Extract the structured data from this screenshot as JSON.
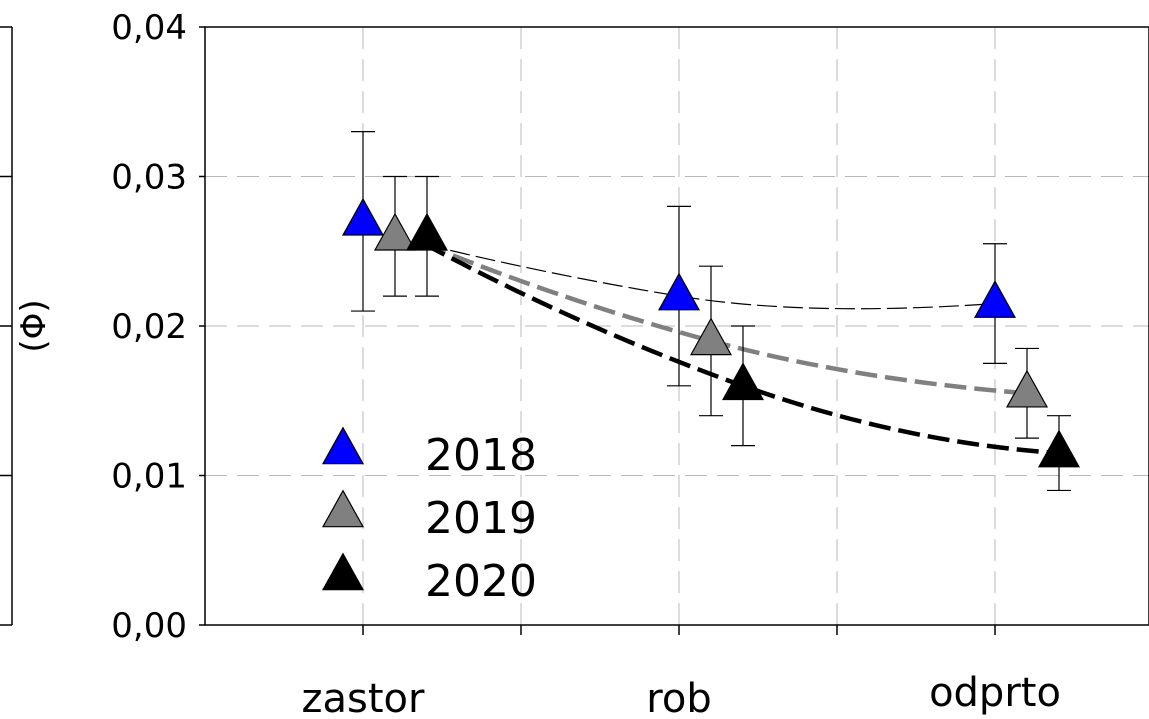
{
  "chart_data": {
    "type": "scatter",
    "categories": [
      "zastor",
      "rob",
      "odprto"
    ],
    "ylabel": "(Φ)",
    "ylim": [
      0,
      0.04
    ],
    "yticks": [
      "0,00",
      "0,01",
      "0,02",
      "0,03",
      "0,04"
    ],
    "grid": true,
    "legend_position": "bottom-left",
    "series": [
      {
        "name": "2018",
        "color": "#0000ff",
        "points": [
          {
            "category": "zastor",
            "y": 0.027,
            "err_low": 0.021,
            "err_high": 0.033
          },
          {
            "category": "rob",
            "y": 0.022,
            "err_low": 0.016,
            "err_high": 0.028
          },
          {
            "category": "odprto",
            "y": 0.0215,
            "err_low": 0.0175,
            "err_high": 0.0255
          }
        ]
      },
      {
        "name": "2019",
        "color": "#808080",
        "points": [
          {
            "category": "zastor",
            "y": 0.026,
            "err_low": 0.022,
            "err_high": 0.03
          },
          {
            "category": "rob",
            "y": 0.019,
            "err_low": 0.014,
            "err_high": 0.024
          },
          {
            "category": "odprto",
            "y": 0.0155,
            "err_low": 0.0125,
            "err_high": 0.0185
          }
        ]
      },
      {
        "name": "2020",
        "color": "#000000",
        "points": [
          {
            "category": "zastor",
            "y": 0.026,
            "err_low": 0.022,
            "err_high": 0.03
          },
          {
            "category": "rob",
            "y": 0.016,
            "err_low": 0.012,
            "err_high": 0.02
          },
          {
            "category": "odprto",
            "y": 0.0115,
            "err_low": 0.009,
            "err_high": 0.014
          }
        ]
      }
    ]
  }
}
